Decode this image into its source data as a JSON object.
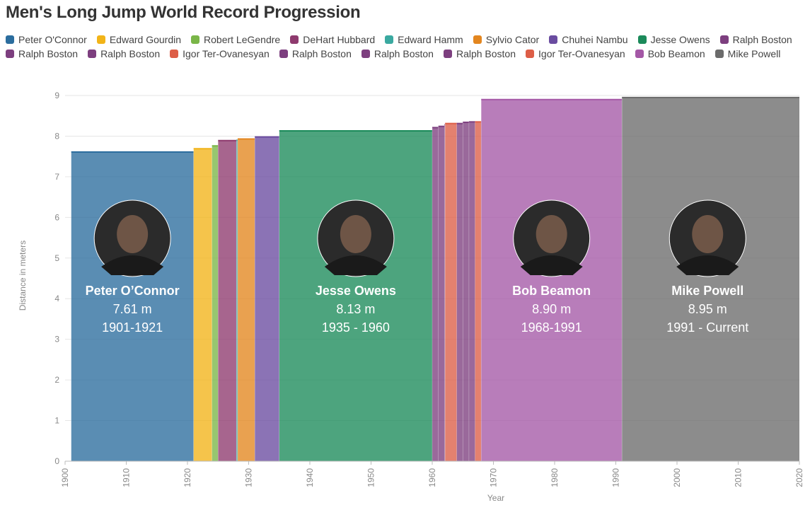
{
  "title": "Men's Long Jump World Record Progression",
  "chart_data": {
    "type": "area",
    "title": "Men's Long Jump World Record Progression",
    "xlabel": "Year",
    "ylabel": "Distance in meters",
    "xlim": [
      1900,
      2020
    ],
    "ylim": [
      0,
      9
    ],
    "x_ticks": [
      "1900",
      "1910",
      "1920",
      "1930",
      "1940",
      "1950",
      "1960",
      "1970",
      "1980",
      "1990",
      "2000",
      "2010",
      "2020"
    ],
    "y_ticks": [
      "0",
      "1",
      "2",
      "3",
      "4",
      "5",
      "6",
      "7",
      "8",
      "9"
    ],
    "grid": "horizontal",
    "legend_position": "top",
    "series": [
      {
        "name": "Peter O'Connor",
        "start": 1901,
        "end": 1921,
        "value": 7.61,
        "color": "#2b6d9e"
      },
      {
        "name": "Edward Gourdin",
        "start": 1921,
        "end": 1924,
        "value": 7.69,
        "color": "#f2b418"
      },
      {
        "name": "Robert LeGendre",
        "start": 1924,
        "end": 1925,
        "value": 7.76,
        "color": "#7ab648"
      },
      {
        "name": "DeHart Hubbard",
        "start": 1925,
        "end": 1928,
        "value": 7.89,
        "color": "#8e3a6e"
      },
      {
        "name": "Edward Hamm",
        "start": 1928,
        "end": 1928.2,
        "value": 7.9,
        "color": "#3aa9a0"
      },
      {
        "name": "Sylvio Cator",
        "start": 1928.2,
        "end": 1931,
        "value": 7.93,
        "color": "#e3861f"
      },
      {
        "name": "Chuhei Nambu",
        "start": 1931,
        "end": 1935,
        "value": 7.98,
        "color": "#6a4ca0"
      },
      {
        "name": "Jesse Owens",
        "start": 1935,
        "end": 1960,
        "value": 8.13,
        "color": "#1b8a5a"
      },
      {
        "name": "Ralph Boston",
        "start": 1960,
        "end": 1961,
        "value": 8.21,
        "color": "#7d3f7f"
      },
      {
        "name": "Ralph Boston",
        "start": 1961,
        "end": 1962,
        "value": 8.24,
        "color": "#7d3f7f"
      },
      {
        "name": "Ralph Boston",
        "start": 1962,
        "end": 1962.1,
        "value": 8.28,
        "color": "#7d3f7f"
      },
      {
        "name": "Igor Ter-Ovanesyan",
        "start": 1962.1,
        "end": 1964,
        "value": 8.31,
        "color": "#dd5e47"
      },
      {
        "name": "Ralph Boston",
        "start": 1964,
        "end": 1965,
        "value": 8.31,
        "color": "#7d3f7f"
      },
      {
        "name": "Ralph Boston",
        "start": 1965,
        "end": 1966,
        "value": 8.34,
        "color": "#7d3f7f"
      },
      {
        "name": "Ralph Boston",
        "start": 1966,
        "end": 1967,
        "value": 8.35,
        "color": "#7d3f7f"
      },
      {
        "name": "Igor Ter-Ovanesyan",
        "start": 1967,
        "end": 1968,
        "value": 8.35,
        "color": "#dd5e47"
      },
      {
        "name": "Bob Beamon",
        "start": 1968,
        "end": 1991,
        "value": 8.9,
        "color": "#a458a6"
      },
      {
        "name": "Mike Powell",
        "start": 1991,
        "end": 2020,
        "value": 8.95,
        "color": "#6b6b6b"
      }
    ],
    "annotations": [
      {
        "name": "Peter O’Connor",
        "distance": "7.61 m",
        "years": "1901-1921",
        "x": 1911
      },
      {
        "name": "Jesse Owens",
        "distance": "8.13 m",
        "years": "1935 - 1960",
        "x": 1947.5
      },
      {
        "name": "Bob Beamon",
        "distance": "8.90 m",
        "years": "1968-1991",
        "x": 1979.5
      },
      {
        "name": "Mike Powell",
        "distance": "8.95 m",
        "years": "1991 - Current",
        "x": 2005
      }
    ]
  }
}
